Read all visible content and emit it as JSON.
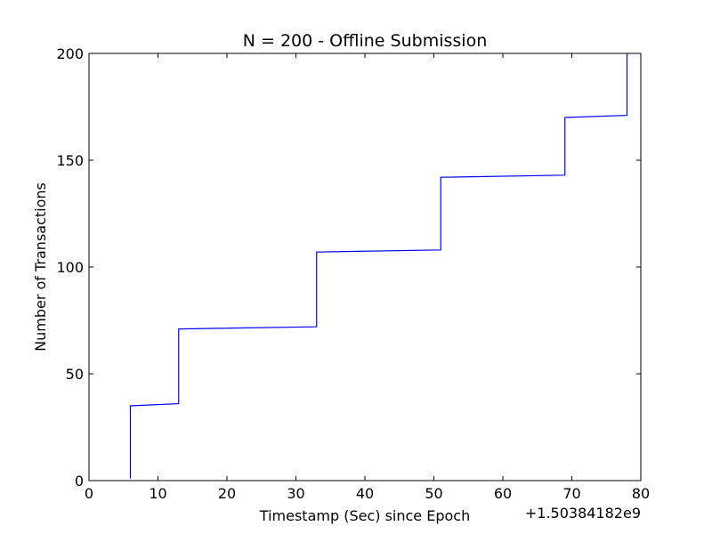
{
  "chart_data": {
    "type": "line",
    "title": "N = 200 - Offline Submission",
    "xlabel": "Timestamp (Sec) since Epoch",
    "ylabel": "Number of Transactions",
    "x_offset_label": "+1.50384182e9",
    "xlim": [
      0,
      80
    ],
    "ylim": [
      0,
      200
    ],
    "xticks": [
      0,
      10,
      20,
      30,
      40,
      50,
      60,
      70,
      80
    ],
    "yticks": [
      0,
      50,
      100,
      150,
      200
    ],
    "grid": false,
    "series_color": "#0000ff",
    "series": [
      {
        "x": [
          6,
          6,
          13,
          13,
          33,
          33,
          51,
          51,
          69,
          69,
          78,
          78
        ],
        "y": [
          1,
          35,
          36,
          71,
          72,
          107,
          108,
          142,
          143,
          170,
          171,
          200
        ]
      }
    ]
  }
}
